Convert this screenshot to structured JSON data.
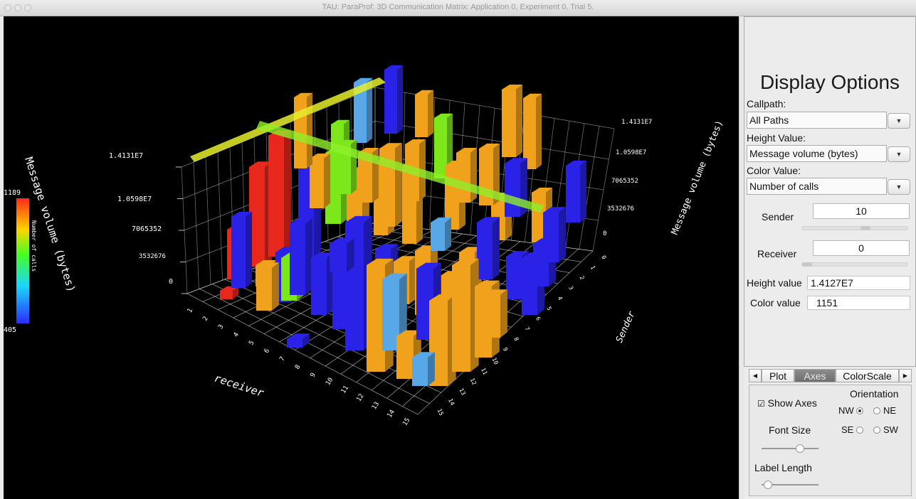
{
  "window": {
    "title": "TAU: ParaProf: 3D Communication Matrix: Application 0, Experiment 0, Trial 5."
  },
  "plot": {
    "height_axis_label": "Message volume (bytes)",
    "height_axis_label_right": "Message volume (bytes)",
    "x_axis_label": "receiver",
    "y_axis_label": "Sender",
    "height_ticks": [
      "1.4131E7",
      "1.0598E7",
      "7065352",
      "3532676",
      "0"
    ],
    "height_ticks_right": [
      "1.4131E7",
      "1.0598E7",
      "7065352",
      "3532676",
      "0"
    ],
    "receiver_ticks": [
      "1",
      "2",
      "3",
      "4",
      "5",
      "6",
      "7",
      "8",
      "9",
      "10",
      "11",
      "12",
      "13",
      "14",
      "15"
    ],
    "sender_ticks": [
      "0",
      "1",
      "2",
      "3",
      "4",
      "5",
      "6",
      "7",
      "8",
      "9",
      "10",
      "11",
      "12",
      "13",
      "14",
      "15"
    ],
    "colorscale": {
      "label": "Number of calls",
      "max": "1189",
      "min": "405",
      "colors": [
        "#ff0000",
        "#ffff00",
        "#00ff00",
        "#00ffff",
        "#0000ff"
      ]
    }
  },
  "display_options": {
    "title": "Display Options",
    "callpath_label": "Callpath:",
    "callpath_value": "All Paths",
    "height_label": "Height Value:",
    "height_value": "Message volume (bytes)",
    "color_label": "Color Value:",
    "color_value": "Number of calls",
    "sender_label": "Sender",
    "sender_value": "10",
    "sender_slider_fraction": 0.6,
    "receiver_label": "Receiver",
    "receiver_value": "0",
    "receiver_slider_fraction": 0.0,
    "height_value_label": "Height value",
    "height_value_readout": "1.4127E7",
    "color_value_label": "Color value",
    "color_value_readout": "1151",
    "dropdown_icon": "chevron-down-icon"
  },
  "tabs": {
    "left_arrow": "◀",
    "right_arrow": "▶",
    "items": [
      {
        "label": "Plot",
        "selected": false
      },
      {
        "label": "Axes",
        "selected": true
      },
      {
        "label": "ColorScale",
        "selected": false
      }
    ]
  },
  "axes_tab": {
    "show_axes_label": "Show Axes",
    "show_axes_checked": true,
    "checkbox_mark": "☑",
    "orientation_label": "Orientation",
    "orientations": [
      {
        "label": "NW",
        "selected": true
      },
      {
        "label": "NE",
        "selected": false
      },
      {
        "label": "SE",
        "selected": false
      },
      {
        "label": "SW",
        "selected": false
      }
    ],
    "font_size_label": "Font Size",
    "font_size_fraction": 0.7,
    "label_length_label": "Label Length",
    "label_length_fraction": 0.05
  }
}
